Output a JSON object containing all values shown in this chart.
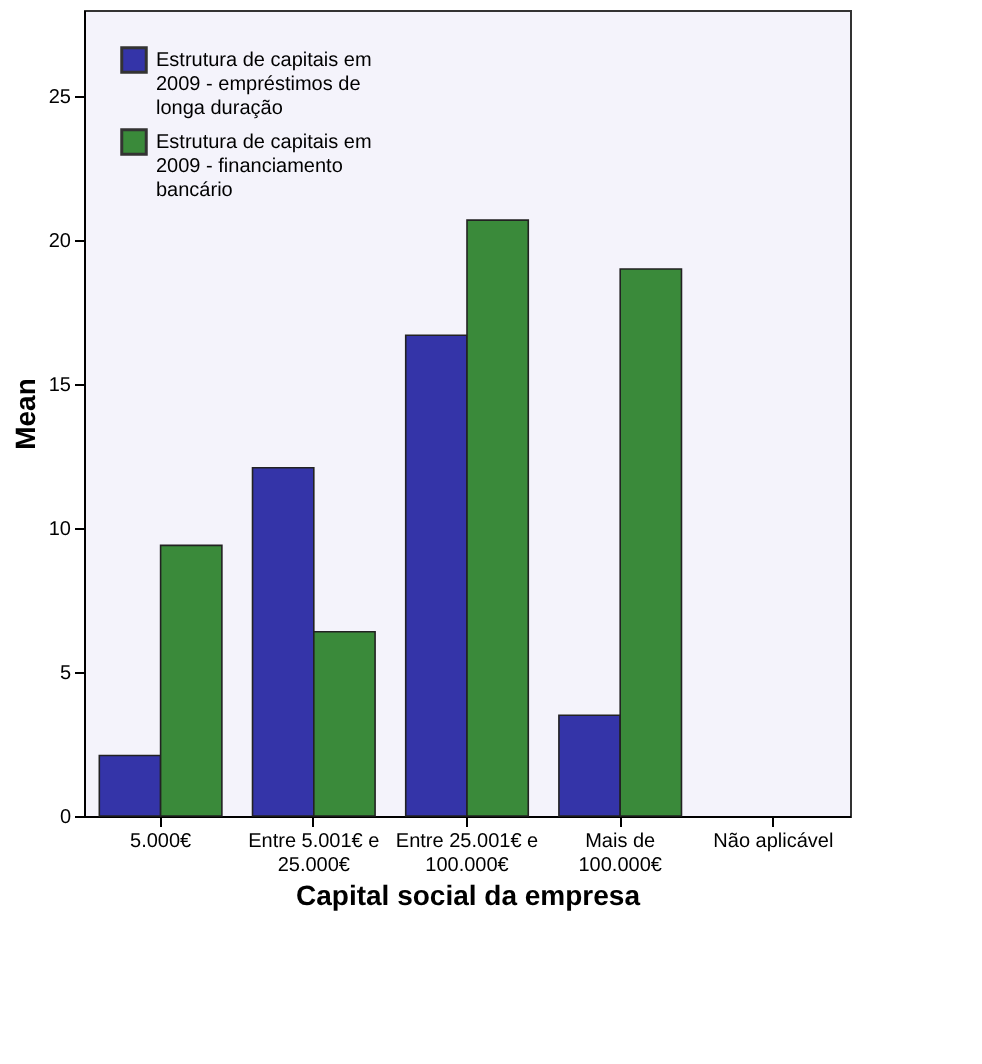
{
  "chart_data": {
    "type": "bar",
    "xlabel": "Capital social da empresa",
    "ylabel": "Mean",
    "categories": [
      "5.000€",
      "Entre 5.001€ e\n25.000€",
      "Entre 25.001€ e\n100.000€",
      "Mais de\n100.000€",
      "Não aplicável"
    ],
    "series": [
      {
        "name": "Estrutura de capitais em\n2009 - empréstimos de\nlonga duração",
        "color": "#3434a8",
        "values": [
          2.1,
          12.1,
          16.7,
          3.5,
          null
        ]
      },
      {
        "name": "Estrutura de capitais em\n2009 - financiamento\nbancário",
        "color": "#3a8a3a",
        "values": [
          9.4,
          6.4,
          20.7,
          19.0,
          null
        ]
      }
    ],
    "ylim": [
      0,
      28
    ],
    "yticks": [
      0,
      5,
      10,
      15,
      20,
      25
    ],
    "grid": false,
    "legend": "top left"
  }
}
